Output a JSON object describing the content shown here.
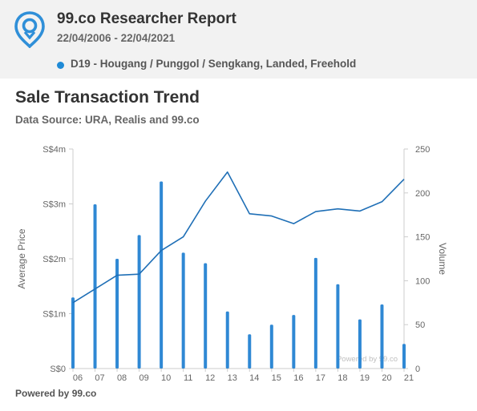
{
  "header": {
    "title": "99.co Researcher Report",
    "date_range": "22/04/2006 - 22/04/2021",
    "filter": "D19 - Hougang / Punggol / Sengkang, Landed, Freehold",
    "logo_icon": "location-pin-logo-icon"
  },
  "chart_data": {
    "type": "bar",
    "title": "Sale Transaction Trend",
    "subtitle": "Data Source: URA, Realis and 99.co",
    "categories": [
      "06",
      "07",
      "08",
      "09",
      "10",
      "11",
      "12",
      "13",
      "14",
      "15",
      "16",
      "17",
      "18",
      "19",
      "20",
      "21"
    ],
    "y_left": {
      "label": "Average Price",
      "ticks": [
        "S$0",
        "S$1m",
        "S$2m",
        "S$3m",
        "S$4m"
      ],
      "range": [
        0,
        4000000
      ]
    },
    "y_right": {
      "label": "Volume",
      "ticks": [
        "0",
        "50",
        "100",
        "150",
        "200",
        "250"
      ],
      "range": [
        0,
        250
      ]
    },
    "series": [
      {
        "name": "Volume",
        "type": "bar",
        "axis": "right",
        "color": "#2f88d4",
        "values": [
          81,
          187,
          125,
          152,
          213,
          132,
          120,
          65,
          39,
          50,
          61,
          126,
          96,
          56,
          73,
          28
        ]
      },
      {
        "name": "Average Price",
        "type": "line",
        "axis": "left",
        "color": "#1f6fb6",
        "values": [
          1200000,
          1450000,
          1700000,
          1720000,
          2150000,
          2400000,
          3050000,
          3580000,
          2820000,
          2780000,
          2640000,
          2860000,
          2910000,
          2870000,
          3040000,
          3450000
        ]
      }
    ],
    "watermark": "Powered by 99.co",
    "grid": false
  },
  "footer": {
    "text": "Powered by 99.co"
  }
}
